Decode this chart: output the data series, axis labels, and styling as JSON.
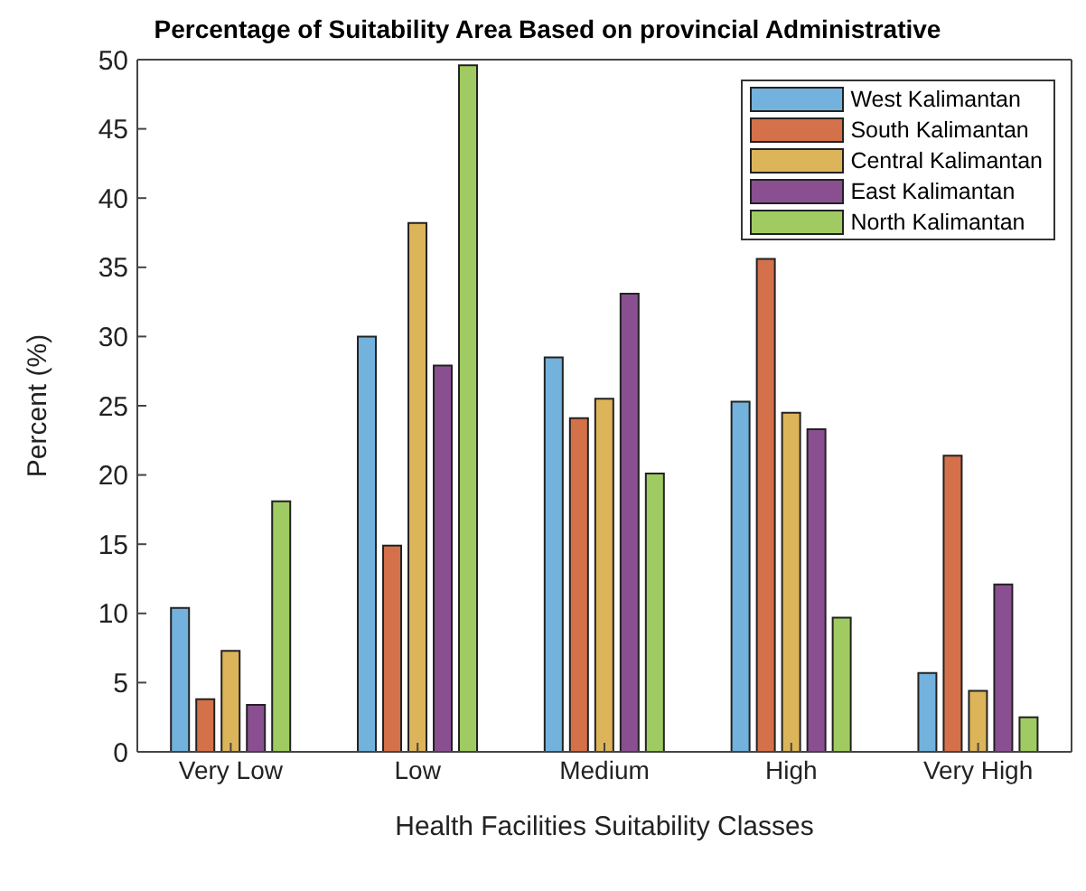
{
  "chart_data": {
    "type": "bar",
    "title": "Percentage of Suitability Area Based on provincial Administrative",
    "xlabel": "Health Facilities Suitability Classes",
    "ylabel": "Percent (%)",
    "categories": [
      "Very Low",
      "Low",
      "Medium",
      "High",
      "Very High"
    ],
    "series": [
      {
        "name": "West Kalimantan",
        "color": "#72b2dc",
        "values": [
          10.4,
          30,
          28.5,
          25.3,
          5.7
        ]
      },
      {
        "name": "South Kalimantan",
        "color": "#d4714a",
        "values": [
          3.8,
          14.9,
          24.1,
          35.6,
          21.4
        ]
      },
      {
        "name": "Central Kalimantan",
        "color": "#dcb45a",
        "values": [
          7.3,
          38.2,
          25.5,
          24.5,
          4.4
        ]
      },
      {
        "name": "East Kalimantan",
        "color": "#8a4f91",
        "values": [
          3.4,
          27.9,
          33.1,
          23.3,
          12.1
        ]
      },
      {
        "name": "North Kalimantan",
        "color": "#a0cb62",
        "values": [
          18.1,
          49.6,
          20.1,
          9.7,
          2.5
        ]
      }
    ],
    "ylim": [
      0,
      50
    ],
    "yticks": [
      0,
      5,
      10,
      15,
      20,
      25,
      30,
      35,
      40,
      45,
      50
    ],
    "grid": false,
    "legend": "top right"
  }
}
